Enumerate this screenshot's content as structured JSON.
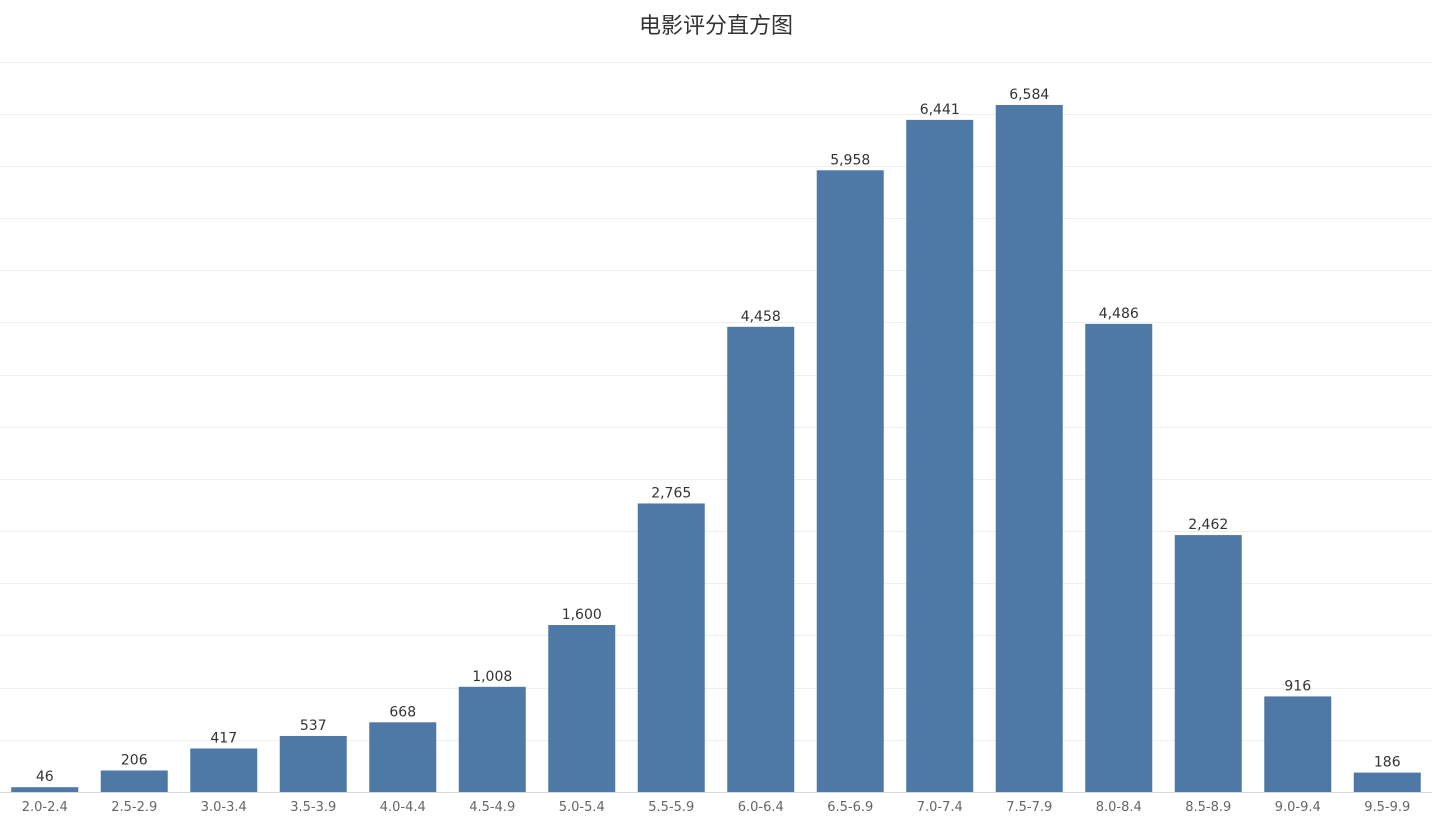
{
  "chart_data": {
    "type": "bar",
    "title": "电影评分直方图",
    "xlabel": "",
    "ylabel": "",
    "categories": [
      "2.0-2.4",
      "2.5-2.9",
      "3.0-3.4",
      "3.5-3.9",
      "4.0-4.4",
      "4.5-4.9",
      "5.0-5.4",
      "5.5-5.9",
      "6.0-6.4",
      "6.5-6.9",
      "7.0-7.4",
      "7.5-7.9",
      "8.0-8.4",
      "8.5-8.9",
      "9.0-9.4",
      "9.5-9.9"
    ],
    "values": [
      46,
      206,
      417,
      537,
      668,
      1008,
      1600,
      2765,
      4458,
      5958,
      6441,
      6584,
      4486,
      2462,
      916,
      186
    ],
    "value_labels": [
      "46",
      "206",
      "417",
      "537",
      "668",
      "1,008",
      "1,600",
      "2,765",
      "4,458",
      "5,958",
      "6,441",
      "6,584",
      "4,486",
      "2,462",
      "916",
      "186"
    ],
    "ylim": [
      0,
      7000
    ],
    "grid": true,
    "legend": "none",
    "bar_color": "#4e79a7"
  }
}
